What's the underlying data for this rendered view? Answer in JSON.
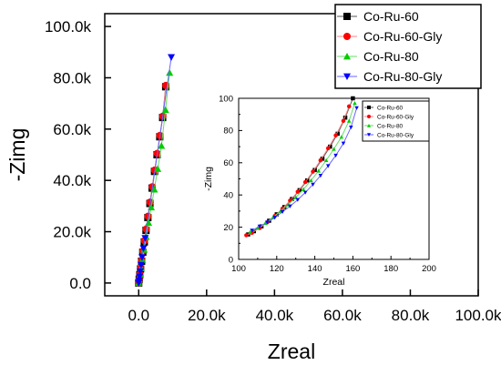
{
  "chart_data": [
    {
      "type": "scatter",
      "title": "",
      "xlabel": "Zreal",
      "ylabel": "-Zimg",
      "xlim": [
        -10000,
        100000
      ],
      "ylim": [
        -5000,
        105000
      ],
      "xticks": [
        0,
        20000,
        40000,
        60000,
        80000,
        100000
      ],
      "xtick_labels": [
        "0.0",
        "20.0k",
        "40.0k",
        "60.0k",
        "80.0k",
        "100.0k"
      ],
      "yticks": [
        0,
        20000,
        40000,
        60000,
        80000,
        100000
      ],
      "ytick_labels": [
        "0.0",
        "20.0k",
        "40.0k",
        "60.0k",
        "80.0k",
        "100.0k"
      ],
      "grid": false,
      "legend_position": "top-right",
      "series": [
        {
          "name": "Co-Ru-60",
          "color": "#000000",
          "marker": "square",
          "x": [
            0,
            150,
            320,
            550,
            850,
            1200,
            1650,
            2150,
            2700,
            3300,
            3950,
            4650,
            5400,
            6200,
            7050,
            7950
          ],
          "y": [
            0,
            1500,
            3200,
            5500,
            8500,
            12000,
            16000,
            20500,
            25500,
            31000,
            37000,
            43500,
            50000,
            57000,
            64500,
            76500
          ]
        },
        {
          "name": "Co-Ru-60-Gly",
          "color": "#ff0000",
          "marker": "circle",
          "x": [
            0,
            160,
            340,
            580,
            880,
            1240,
            1700,
            2200,
            2750,
            3350,
            4000,
            4700,
            5450,
            6250,
            7100,
            8000
          ],
          "y": [
            0,
            1600,
            3400,
            5800,
            8800,
            12400,
            16500,
            21000,
            26000,
            31500,
            37500,
            44000,
            50500,
            57500,
            65000,
            77000
          ]
        },
        {
          "name": "Co-Ru-80",
          "color": "#00cc00",
          "marker": "triangle-up",
          "x": [
            0,
            180,
            400,
            700,
            1100,
            1600,
            2200,
            2900,
            3700,
            4600,
            5600,
            6700,
            7900,
            9100
          ],
          "y": [
            0,
            1500,
            3300,
            5800,
            9000,
            13000,
            18000,
            23500,
            29500,
            36500,
            44500,
            53500,
            67500,
            82000
          ]
        },
        {
          "name": "Co-Ru-80-Gly",
          "color": "#0000ff",
          "marker": "triangle-down",
          "x": [
            0,
            100,
            250,
            450,
            700,
            1000,
            1400,
            1900,
            9600
          ],
          "y": [
            0,
            1000,
            2500,
            4500,
            7000,
            10000,
            13500,
            17500,
            88000
          ]
        }
      ]
    },
    {
      "type": "line",
      "title": "",
      "xlabel": "Zreal",
      "ylabel": "-Zimg",
      "xlim": [
        100,
        200
      ],
      "ylim": [
        0,
        100
      ],
      "xticks": [
        100,
        120,
        140,
        160,
        180,
        200
      ],
      "yticks": [
        0,
        20,
        40,
        60,
        80,
        100
      ],
      "grid": false,
      "legend_position": "top-right",
      "series": [
        {
          "name": "Co-Ru-60",
          "color": "#000000",
          "marker": "square",
          "x": [
            105,
            108,
            112,
            116,
            120,
            124,
            128,
            132,
            136,
            140,
            144,
            148,
            152,
            156,
            160
          ],
          "y": [
            15.5,
            17.5,
            20.5,
            24,
            28,
            32.5,
            37.5,
            43,
            49,
            55.5,
            62.5,
            70,
            78,
            88,
            100
          ]
        },
        {
          "name": "Co-Ru-60-Gly",
          "color": "#ff0000",
          "marker": "circle",
          "x": [
            104,
            107,
            111,
            115,
            119,
            123,
            127,
            131,
            135,
            139,
            143,
            147,
            151,
            155,
            158
          ],
          "y": [
            15,
            16.5,
            19.5,
            23,
            27,
            31.5,
            36.5,
            42,
            48,
            54.5,
            61.5,
            69,
            77,
            86,
            95
          ]
        },
        {
          "name": "Co-Ru-80",
          "color": "#00cc00",
          "marker": "triangle-up",
          "x": [
            106,
            110,
            114,
            118,
            122,
            126,
            130,
            134,
            138,
            142,
            146,
            150,
            154,
            158,
            161
          ],
          "y": [
            17,
            19.5,
            22.5,
            26,
            30,
            34,
            38.5,
            43.5,
            49,
            55,
            61.5,
            68.5,
            76,
            86,
            97
          ]
        },
        {
          "name": "Co-Ru-80-Gly",
          "color": "#0000ff",
          "marker": "triangle-down",
          "x": [
            107,
            111,
            115,
            119,
            123,
            127,
            131,
            135,
            139,
            143,
            147,
            151,
            155,
            159,
            162
          ],
          "y": [
            18,
            20.5,
            23,
            26,
            29.5,
            33,
            37,
            41.5,
            46.5,
            52,
            58,
            64.5,
            72,
            82,
            94
          ]
        }
      ]
    }
  ]
}
